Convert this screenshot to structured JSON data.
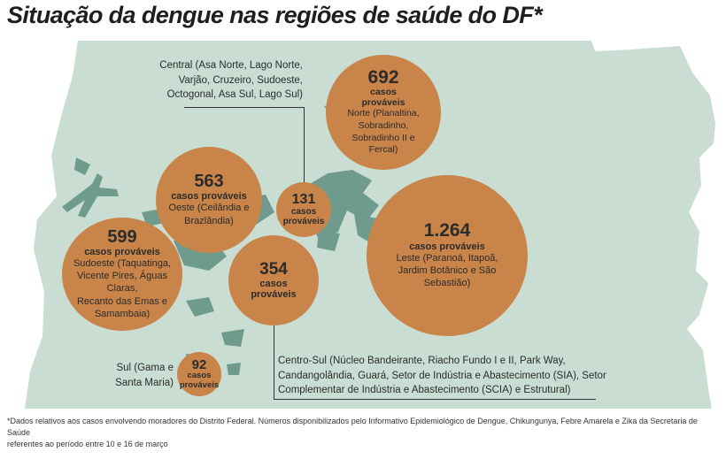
{
  "title": "Situação da dengue nas regiões de saúde do DF*",
  "colors": {
    "bubble": "#c9844a",
    "map": "#c9ddd3",
    "lakes": "#6f9a8e"
  },
  "regions": {
    "norte": {
      "value": "692",
      "unit_1": "casos",
      "unit_2": "prováveis",
      "desc_1": "Norte (Planaltina,",
      "desc_2": "Sobradinho,",
      "desc_3": "Sobradinho II e",
      "desc_4": "Fercal)"
    },
    "oeste": {
      "value": "563",
      "unit": "casos prováveis",
      "desc_1": "Oeste (Ceilândia e",
      "desc_2": "Brazlândia)"
    },
    "central": {
      "value": "131",
      "unit_1": "casos",
      "unit_2": "prováveis",
      "desc_1": "Central (Asa Norte, Lago Norte,",
      "desc_2": "Varjão, Cruzeiro, Sudoeste,",
      "desc_3": "Octogonal, Asa Sul, Lago Sul)"
    },
    "sudoeste": {
      "value": "599",
      "unit": "casos prováveis",
      "desc_1": "Sudoeste (Taquatinga,",
      "desc_2": "Vicente Pires, Águas Claras,",
      "desc_3": "Recanto das Emas e",
      "desc_4": "Samambaia)"
    },
    "centrosul": {
      "value": "354",
      "unit_1": "casos",
      "unit_2": "prováveis",
      "desc_1": "Centro-Sul (Núcleo Bandeirante, Riacho Fundo I e II, Park Way,",
      "desc_2": "Candangolândia, Guará, Setor de Indústria e Abastecimento (SIA), Setor",
      "desc_3": "Complementar de Indústria e Abastecimento (SCIA) e Estrutural)"
    },
    "leste": {
      "value": "1.264",
      "unit": "casos prováveis",
      "desc_1": "Leste (Paranoá, Itapoã,",
      "desc_2": "Jardim Botânico e São",
      "desc_3": "Sebastião)"
    },
    "sul": {
      "value": "92",
      "unit_1": "casos",
      "unit_2": "prováveis",
      "desc_1": "Sul (Gama e",
      "desc_2": "Santa Maria)"
    }
  },
  "footnote": {
    "line_1": "*Dados relativos aos casos envolvendo moradores do Distrito Federal. Números disponibilizados pelo Informativo Epidemiológico de Dengue, Chikungunya, Febre Amarela e Zika da Secretaria de Saúde",
    "line_2": "referentes ao período entre 10 e 16 de março"
  }
}
